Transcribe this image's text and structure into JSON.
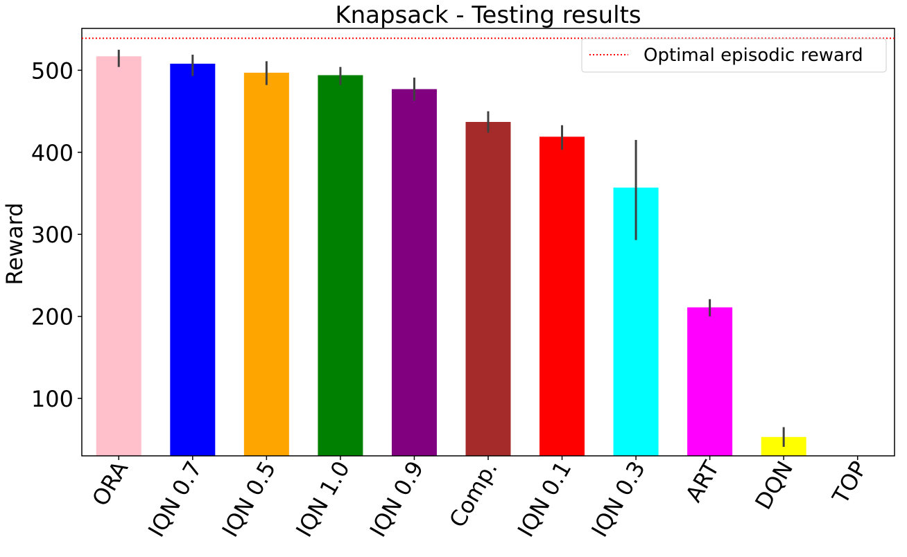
{
  "chart_data": {
    "type": "bar",
    "title": "Knapsack - Testing results",
    "xlabel": "",
    "ylabel": "Reward",
    "ylim": [
      30,
      551
    ],
    "yticks": [
      100,
      200,
      300,
      400,
      500
    ],
    "grid": false,
    "legend": {
      "placement": "top-right",
      "entries": [
        "Optimal episodic reward"
      ]
    },
    "reference_line": {
      "name": "Optimal episodic reward",
      "value": 539,
      "color": "#ff0000",
      "style": "dotted"
    },
    "categories": [
      "ORA",
      "IQN 0.7",
      "IQN 0.5",
      "IQN 1.0",
      "IQN 0.9",
      "Comp.",
      "IQN 0.1",
      "IQN 0.3",
      "ART",
      "DQN",
      "TOP"
    ],
    "values": [
      517,
      508,
      497,
      494,
      477,
      437,
      419,
      357,
      211,
      53,
      0
    ],
    "error_low": [
      504,
      493,
      482,
      482,
      463,
      424,
      403,
      293,
      200,
      41,
      null
    ],
    "error_high": [
      525,
      519,
      511,
      504,
      491,
      450,
      433,
      415,
      221,
      65,
      null
    ],
    "colors": [
      "#ffc0cb",
      "#0000ff",
      "#ffa500",
      "#008000",
      "#800080",
      "#a52a2a",
      "#ff0000",
      "#00ffff",
      "#ff00ff",
      "#ffff00",
      "#000000"
    ],
    "error_color": "#404040"
  }
}
